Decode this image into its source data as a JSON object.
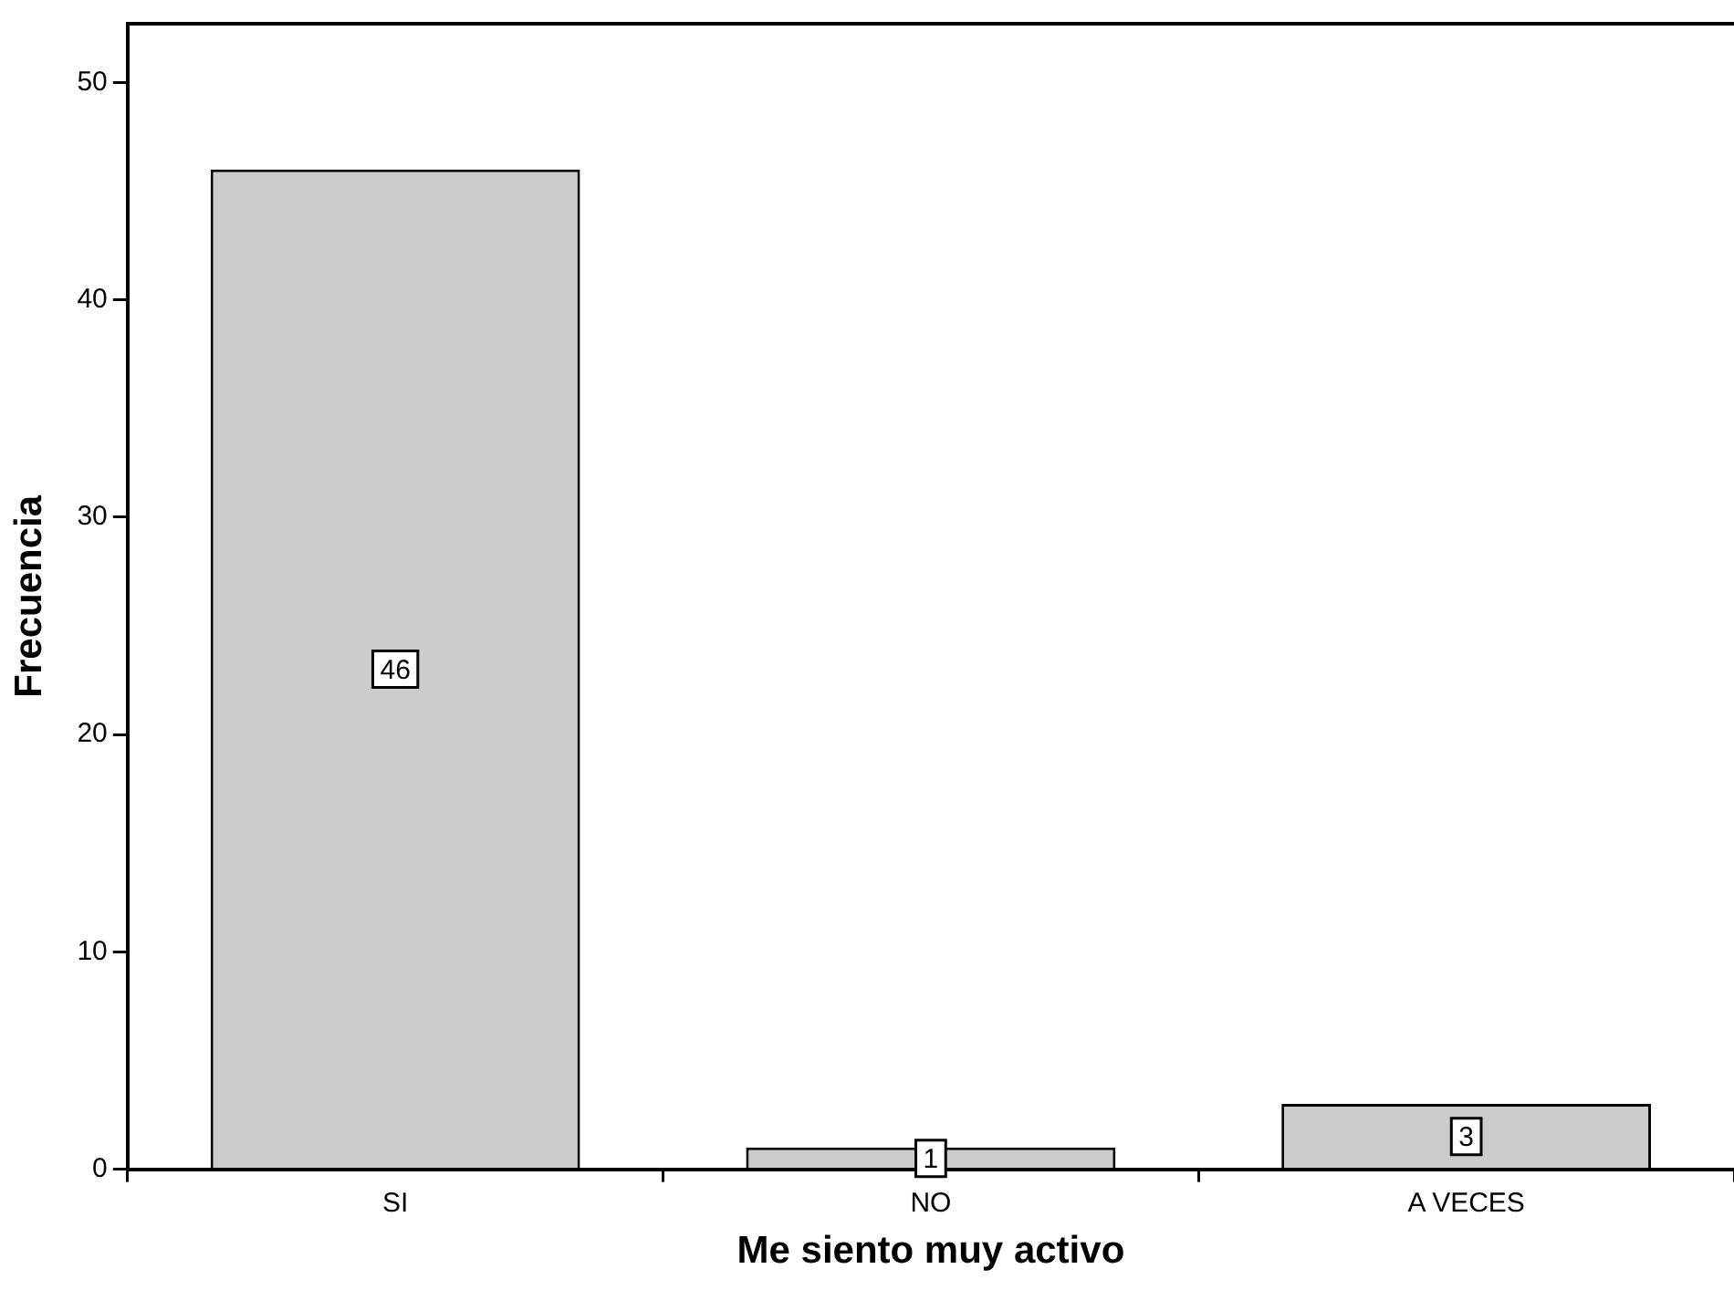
{
  "chart_data": {
    "type": "bar",
    "xlabel": "Me siento muy activo",
    "ylabel": "Frecuencia",
    "categories": [
      "SI",
      "NO",
      "A VECES"
    ],
    "values": [
      46,
      1,
      3
    ],
    "color": "#cccccc",
    "ylim": [
      0,
      52.7
    ],
    "yticks": [
      0,
      10,
      20,
      30,
      40,
      50
    ],
    "grid": false,
    "legend": false,
    "data_labels": true
  }
}
